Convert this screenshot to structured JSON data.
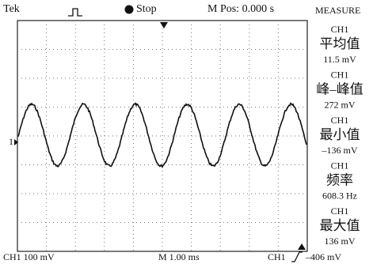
{
  "header": {
    "brand": "Tek",
    "status": "Stop",
    "position": "M Pos: 0.000 s"
  },
  "measure": {
    "title": "MEASURE",
    "items": [
      {
        "channel": "CH1",
        "name": "平均值",
        "value": "11.5 mV"
      },
      {
        "channel": "CH1",
        "name": "峰–峰值",
        "value": "272 mV"
      },
      {
        "channel": "CH1",
        "name": "最小值",
        "value": "–136 mV"
      },
      {
        "channel": "CH1",
        "name": "频率",
        "value": "608.3 Hz"
      },
      {
        "channel": "CH1",
        "name": "最大值",
        "value": "136 mV"
      }
    ]
  },
  "marker": {
    "channel_level": "1"
  },
  "footer": {
    "channel_scale": "CH1  100 mV",
    "time_scale": "M 1.00 ms",
    "trigger_source": "CH1",
    "trigger_level": "–406 mV"
  }
}
